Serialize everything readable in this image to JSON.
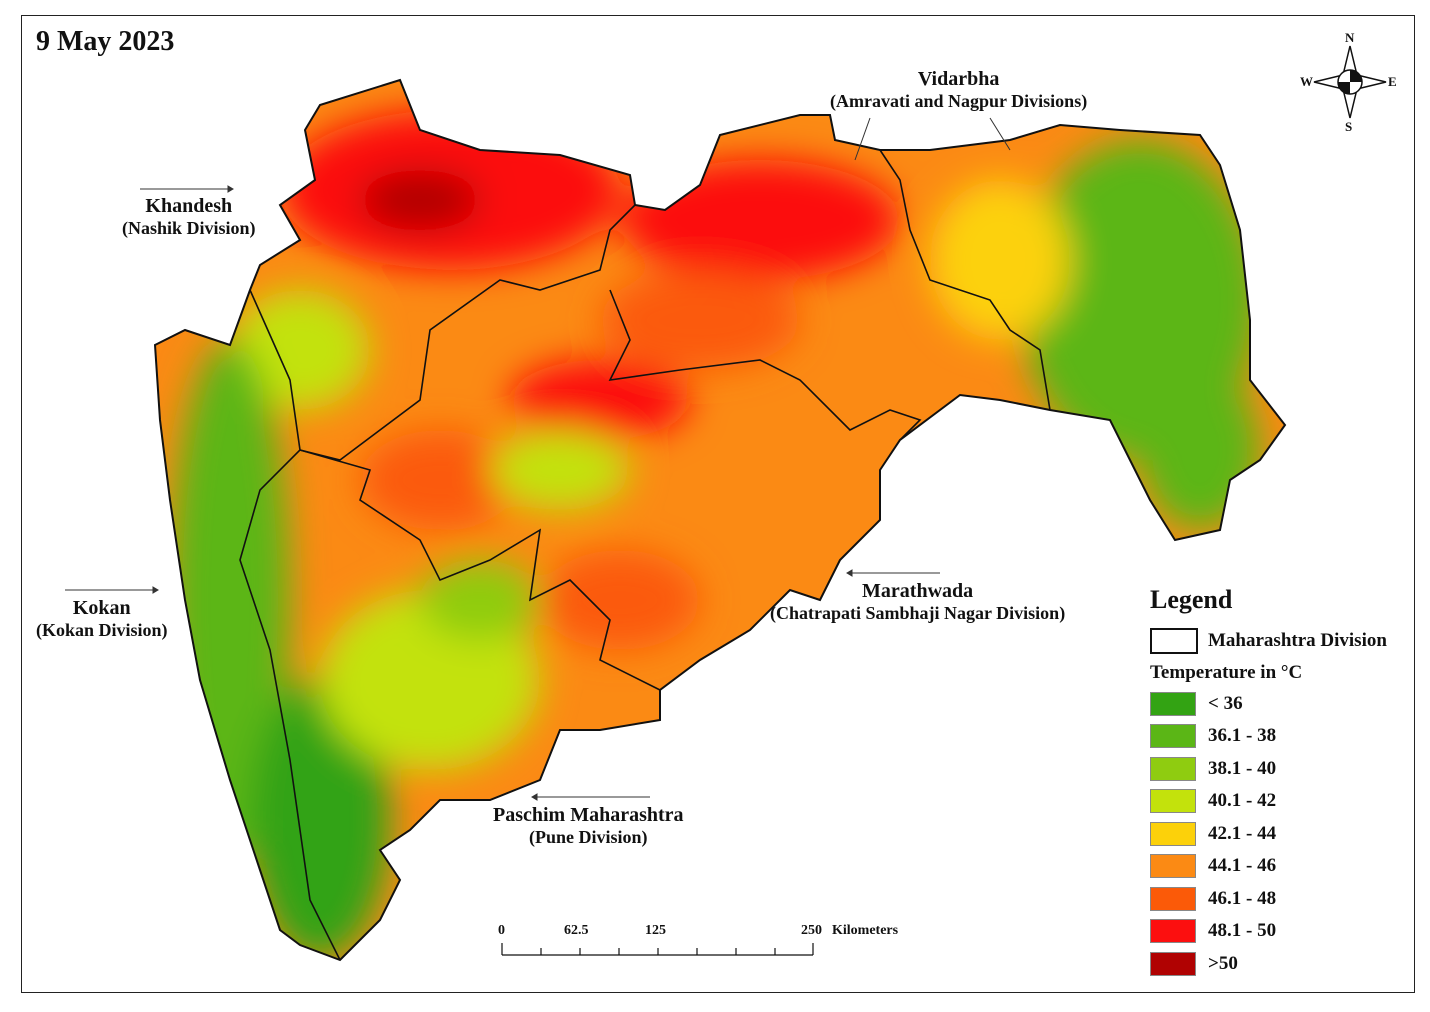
{
  "date": "9 May 2023",
  "regions": [
    {
      "name": "Khandesh",
      "sub": "(Nashik Division)"
    },
    {
      "name": "Vidarbha",
      "sub": "(Amravati and Nagpur Divisions)"
    },
    {
      "name": "Kokan",
      "sub": "(Kokan Division)"
    },
    {
      "name": "Marathwada",
      "sub": "(Chatrapati Sambhaji Nagar Division)"
    },
    {
      "name": "Paschim Maharashtra",
      "sub": "(Pune Division)"
    }
  ],
  "compass": {
    "n": "N",
    "s": "S",
    "e": "E",
    "w": "W"
  },
  "legend": {
    "title": "Legend",
    "boundary_label": "Maharashtra Division",
    "temperature_title": "Temperature in °C",
    "classes": [
      {
        "label": "< 36",
        "color": "#33a313"
      },
      {
        "label": "36.1 - 38",
        "color": "#5bb616"
      },
      {
        "label": "38.1 - 40",
        "color": "#8fcc10"
      },
      {
        "label": "40.1 - 42",
        "color": "#c3e20c"
      },
      {
        "label": "42.1 - 44",
        "color": "#fcd10a"
      },
      {
        "label": "44.1 - 46",
        "color": "#fb8a14"
      },
      {
        "label": "46.1 - 48",
        "color": "#fb5a08"
      },
      {
        "label": "48.1 - 50",
        "color": "#fc0f0f"
      },
      {
        "label": ">50",
        "color": "#b00202"
      }
    ]
  },
  "scale_bar": {
    "ticks": [
      "0",
      "62.5",
      "125",
      "250"
    ],
    "unit": "Kilometers"
  }
}
